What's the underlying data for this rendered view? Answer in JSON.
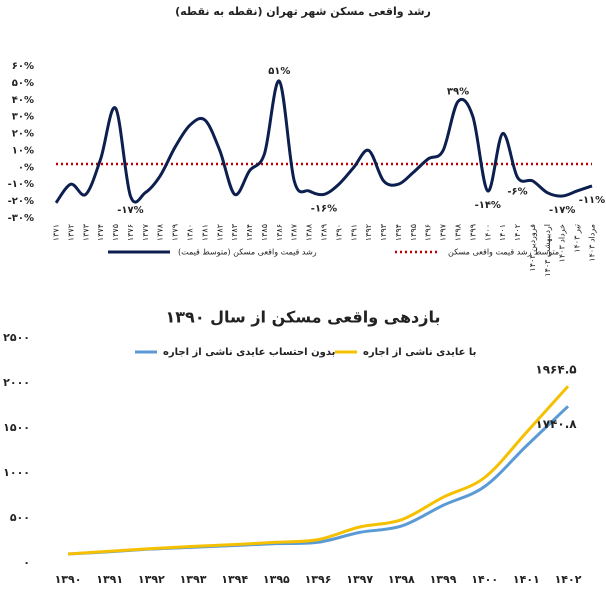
{
  "chart_data": [
    {
      "type": "line",
      "title": "رشد واقعی مسکن شهر تهران (نقطه به نقطه)",
      "categories": [
        "۱۳۷۱",
        "۱۳۷۲",
        "۱۳۷۳",
        "۱۳۷۴",
        "۱۳۷۵",
        "۱۳۷۶",
        "۱۳۷۷",
        "۱۳۷۸",
        "۱۳۷۹",
        "۱۳۸۰",
        "۱۳۸۱",
        "۱۳۸۲",
        "۱۳۸۳",
        "۱۳۸۴",
        "۱۳۸۵",
        "۱۳۸۶",
        "۱۳۸۷",
        "۱۳۸۸",
        "۱۳۸۹",
        "۱۳۹۰",
        "۱۳۹۱",
        "۱۳۹۲",
        "۱۳۹۳",
        "۱۳۹۴",
        "۱۳۹۵",
        "۱۳۹۶",
        "۱۳۹۷",
        "۱۳۹۸",
        "۱۳۹۹",
        "۱۴۰۰",
        "۱۴۰۱",
        "۱۴۰۲",
        "فروردین ۱۴۰۳",
        "اردیبهشت ۱۴۰۳",
        "خرداد ۱۴۰۳",
        "تیر ۱۴۰۳",
        "مرداد ۱۴۰۳"
      ],
      "series": [
        {
          "name": "رشد قیمت واقعی مسکن (متوسط قیمت)",
          "color": "#0d1f4f",
          "values": [
            -21,
            -10,
            -16,
            5,
            35,
            -17,
            -15,
            -5,
            12,
            25,
            28,
            10,
            -16,
            -2,
            8,
            51,
            -8,
            -14,
            -16,
            -10,
            0,
            10,
            -8,
            -10,
            -3,
            5,
            10,
            39,
            30,
            -14,
            20,
            -6,
            -8,
            -15,
            -17,
            -14,
            -11
          ],
          "value_labels": [
            null,
            null,
            null,
            null,
            null,
            "-۱۷%",
            null,
            null,
            null,
            null,
            null,
            null,
            null,
            null,
            null,
            "۵۱%",
            null,
            null,
            "-۱۶%",
            null,
            null,
            null,
            null,
            null,
            null,
            null,
            null,
            "۳۹%",
            null,
            "-۱۴%",
            null,
            "-۶%",
            null,
            null,
            "-۱۷%",
            null,
            "-۱۱%"
          ]
        }
      ],
      "average_line": {
        "name": "متوسط رشد قیمت واقعی مسکن",
        "color": "#c00000",
        "value": 2
      },
      "ylim": [
        -30,
        60
      ],
      "yticks": [
        {
          "value": -30,
          "label": "-۳۰%"
        },
        {
          "value": -20,
          "label": "-۲۰%"
        },
        {
          "value": -10,
          "label": "-۱۰%"
        },
        {
          "value": 0,
          "label": "۰%"
        },
        {
          "value": 10,
          "label": "۱۰%"
        },
        {
          "value": 20,
          "label": "۲۰%"
        },
        {
          "value": 30,
          "label": "۳۰%"
        },
        {
          "value": 40,
          "label": "۴۰%"
        },
        {
          "value": 50,
          "label": "۵۰%"
        },
        {
          "value": 60,
          "label": "۶۰%"
        }
      ]
    },
    {
      "type": "line",
      "title": "بازدهی واقعی مسکن از سال ۱۳۹۰",
      "categories": [
        "۱۳۹۰",
        "۱۳۹۱",
        "۱۳۹۲",
        "۱۳۹۳",
        "۱۳۹۴",
        "۱۳۹۵",
        "۱۳۹۶",
        "۱۳۹۷",
        "۱۳۹۸",
        "۱۳۹۹",
        "۱۴۰۰",
        "۱۴۰۱",
        "۱۴۰۲"
      ],
      "series": [
        {
          "name": "بدون احتساب عایدی ناشی از اجاره",
          "color": "#5b9bd5",
          "values": [
            100,
            125,
            155,
            175,
            195,
            215,
            230,
            340,
            410,
            640,
            850,
            1300,
            1740.8
          ],
          "value_labels": [
            null,
            null,
            null,
            null,
            null,
            null,
            null,
            null,
            null,
            null,
            null,
            null,
            "۱۷۴۰.۸"
          ]
        },
        {
          "name": "با عایدی ناشی از اجاره",
          "color": "#f5c000",
          "values": [
            100,
            130,
            160,
            185,
            205,
            230,
            260,
            400,
            480,
            730,
            950,
            1450,
            1964.5
          ],
          "value_labels": [
            null,
            null,
            null,
            null,
            null,
            null,
            null,
            null,
            null,
            null,
            null,
            null,
            "۱۹۶۴.۵"
          ]
        }
      ],
      "ylim": [
        0,
        2500
      ],
      "yticks": [
        {
          "value": 0,
          "label": "۰"
        },
        {
          "value": 500,
          "label": "۵۰۰"
        },
        {
          "value": 1000,
          "label": "۱۰۰۰"
        },
        {
          "value": 1500,
          "label": "۱۵۰۰"
        },
        {
          "value": 2000,
          "label": "۲۰۰۰"
        },
        {
          "value": 2500,
          "label": "۲۵۰۰"
        }
      ]
    }
  ]
}
